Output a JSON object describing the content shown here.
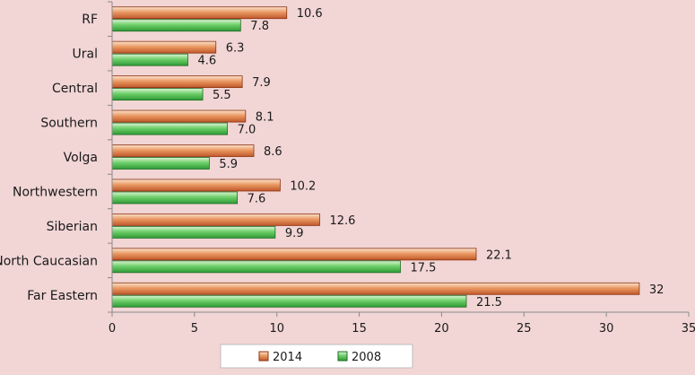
{
  "chart_data": {
    "type": "bar",
    "orientation": "horizontal",
    "title": "",
    "xlabel": "",
    "ylabel": "",
    "categories": [
      "RF",
      "Ural",
      "Central",
      "Southern",
      "Volga",
      "Northwestern",
      "Siberian",
      "North Caucasian",
      "Far Eastern"
    ],
    "series": [
      {
        "name": "2014",
        "values": [
          10.6,
          6.3,
          7.9,
          8.1,
          8.6,
          10.2,
          12.6,
          22.1,
          32
        ],
        "labels": [
          "10.6",
          "6.3",
          "7.9",
          "8.1",
          "8.6",
          "10.2",
          "12.6",
          "22.1",
          "32"
        ],
        "color": "#d9773e"
      },
      {
        "name": "2008",
        "values": [
          7.8,
          4.6,
          5.5,
          7.0,
          5.9,
          7.6,
          9.9,
          17.5,
          21.5
        ],
        "labels": [
          "7.8",
          "4.6",
          "5.5",
          "7.0",
          "5.9",
          "7.6",
          "9.9",
          "17.5",
          "21.5"
        ],
        "color": "#4db84d"
      }
    ],
    "xlim": [
      0,
      35
    ],
    "xticks": [
      "0",
      "5",
      "10",
      "15",
      "20",
      "25",
      "30",
      "35"
    ],
    "grid": false,
    "legend_position": "bottom"
  }
}
